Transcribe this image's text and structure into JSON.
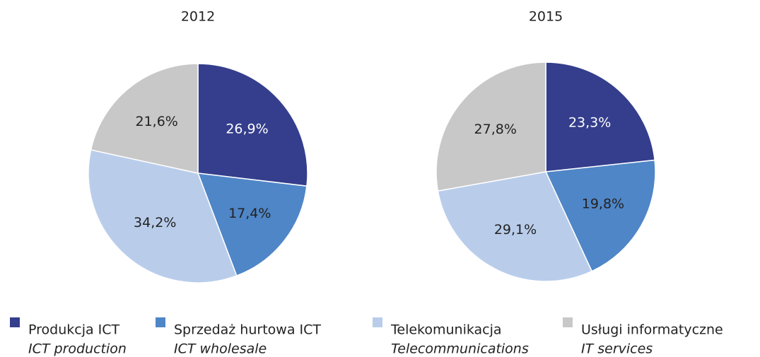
{
  "chart_data": [
    {
      "type": "pie",
      "title": "2012",
      "values": [
        26.9,
        17.4,
        34.2,
        21.6
      ],
      "value_labels": [
        "26,9%",
        "17,4%",
        "34,2%",
        "21,6%"
      ]
    },
    {
      "type": "pie",
      "title": "2015",
      "values": [
        23.3,
        19.8,
        29.1,
        27.8
      ],
      "value_labels": [
        "23,3%",
        "19,8%",
        "29,1%",
        "27,8%"
      ]
    }
  ],
  "legend": {
    "labels": [
      "Produkcja ICT",
      "Sprzedaż hurtowa ICT",
      "Telekomunikacja",
      "Usługi  informatyczne"
    ],
    "sublabels": [
      "ICT production",
      "ICT wholesale",
      "Telecommunications",
      "IT services"
    ],
    "colors": [
      "#343e8c",
      "#4f86c7",
      "#b9cdeb",
      "#c8c8c8"
    ],
    "text_colors": [
      "#ffffff",
      "#222222",
      "#222222",
      "#222222"
    ]
  }
}
